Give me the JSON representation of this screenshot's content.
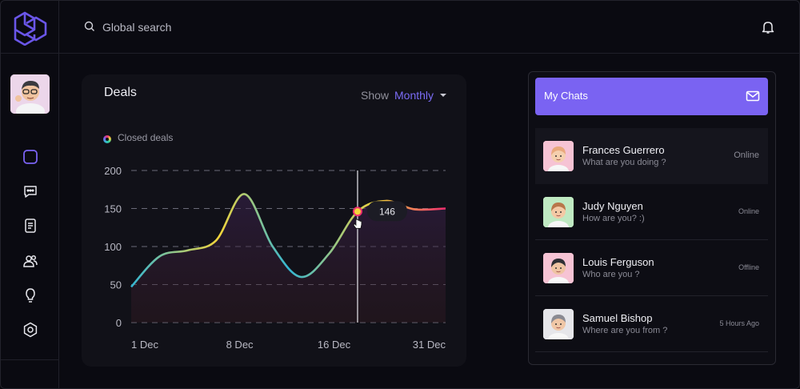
{
  "app": {
    "logo": "logo-icon"
  },
  "search": {
    "placeholder": "Global search"
  },
  "user": {
    "avatar": "user-avatar"
  },
  "nav": [
    "dashboard-icon",
    "chat-icon",
    "document-icon",
    "users-icon",
    "bulb-icon",
    "settings-icon"
  ],
  "deals": {
    "title": "Deals",
    "show_label": "Show",
    "period": "Monthly",
    "legend": "Closed deals"
  },
  "chart_data": {
    "type": "area",
    "title": "Deals",
    "series": [
      {
        "name": "Closed deals",
        "values": [
          47,
          87,
          95,
          108,
          169,
          100,
          60,
          91,
          146,
          160,
          149,
          150
        ]
      }
    ],
    "x": [
      1,
      3.7,
      6.4,
      9.1,
      11.8,
      14.5,
      17.2,
      19.9,
      22.6,
      25.3,
      28,
      31
    ],
    "xticks": [
      "1 Dec",
      "8 Dec",
      "16 Dec",
      "31 Dec"
    ],
    "yticks": [
      "200",
      "150",
      "100",
      "50",
      "0"
    ],
    "ylim": [
      0,
      200
    ],
    "tooltip": {
      "value": "146"
    },
    "colors": {
      "start": "#34b6d3",
      "mid": "#f4d53a",
      "end": "#ef2e6e"
    }
  },
  "chats": {
    "title": "My Chats",
    "items": [
      {
        "name": "Frances Guerrero",
        "message": "What are you doing ?",
        "status": "Online",
        "bg": "#f6c3d4"
      },
      {
        "name": "Judy Nguyen",
        "message": "How are you? :)",
        "status": "Online",
        "bg": "#bfe9c2"
      },
      {
        "name": "Louis Ferguson",
        "message": "Who are you ?",
        "status": "Offline",
        "bg": "#f6c3d4"
      },
      {
        "name": "Samuel Bishop",
        "message": "Where are you from ?",
        "status": "5 Hours Ago",
        "bg": "#e6e6ea"
      }
    ]
  }
}
